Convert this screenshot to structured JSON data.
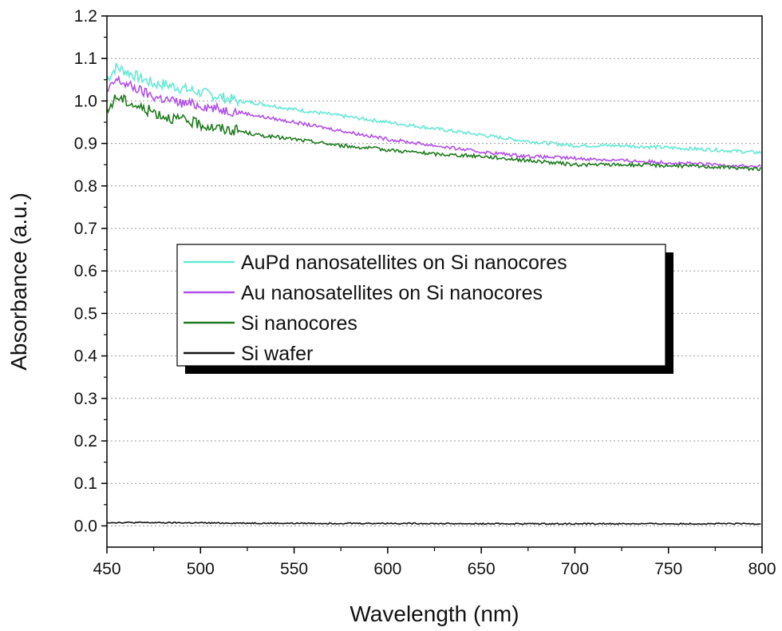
{
  "chart_data": {
    "type": "line",
    "title": "",
    "xlabel": "Wavelength (nm)",
    "ylabel": "Absorbance (a.u.)",
    "xlim": [
      450,
      800
    ],
    "ylim": [
      -0.05,
      1.2
    ],
    "xticks": [
      "450",
      "500",
      "550",
      "600",
      "650",
      "700",
      "750",
      "800"
    ],
    "yticks": [
      "0.0",
      "0.1",
      "0.2",
      "0.3",
      "0.4",
      "0.5",
      "0.6",
      "0.7",
      "0.8",
      "0.9",
      "1.0",
      "1.1",
      "1.2"
    ],
    "grid": "horizontal dotted",
    "legend_position": "center",
    "series": [
      {
        "name": "AuPd nanosatellites on Si nanocores",
        "color": "#66e8d4",
        "x": [
          450,
          455,
          460,
          465,
          470,
          475,
          480,
          490,
          500,
          510,
          520,
          530,
          550,
          575,
          600,
          625,
          650,
          675,
          700,
          725,
          750,
          775,
          800
        ],
        "y": [
          1.05,
          1.08,
          1.07,
          1.06,
          1.05,
          1.04,
          1.04,
          1.03,
          1.02,
          1.01,
          1.0,
          0.995,
          0.98,
          0.965,
          0.95,
          0.935,
          0.92,
          0.905,
          0.895,
          0.895,
          0.89,
          0.885,
          0.878
        ]
      },
      {
        "name": "Au nanosatellites on Si nanocores",
        "color": "#b04fe8",
        "x": [
          450,
          455,
          460,
          465,
          470,
          475,
          480,
          490,
          500,
          510,
          520,
          530,
          550,
          575,
          600,
          625,
          650,
          675,
          700,
          725,
          750,
          775,
          800
        ],
        "y": [
          1.02,
          1.05,
          1.04,
          1.03,
          1.02,
          1.01,
          1.005,
          0.995,
          0.99,
          0.98,
          0.975,
          0.965,
          0.95,
          0.93,
          0.91,
          0.895,
          0.88,
          0.87,
          0.865,
          0.86,
          0.855,
          0.85,
          0.845
        ]
      },
      {
        "name": "Si nanocores",
        "color": "#1f7a1f",
        "x": [
          450,
          452,
          455,
          460,
          465,
          470,
          475,
          480,
          490,
          500,
          510,
          520,
          530,
          550,
          575,
          600,
          625,
          650,
          675,
          700,
          725,
          750,
          775,
          800
        ],
        "y": [
          0.97,
          0.99,
          1.01,
          1.0,
          0.99,
          0.98,
          0.975,
          0.965,
          0.955,
          0.945,
          0.935,
          0.93,
          0.92,
          0.91,
          0.895,
          0.885,
          0.875,
          0.87,
          0.86,
          0.85,
          0.85,
          0.848,
          0.845,
          0.84
        ]
      },
      {
        "name": "Si wafer",
        "color": "#111111",
        "x": [
          450,
          500,
          550,
          600,
          650,
          700,
          750,
          800
        ],
        "y": [
          0.008,
          0.007,
          0.006,
          0.006,
          0.005,
          0.005,
          0.005,
          0.005
        ]
      }
    ]
  }
}
